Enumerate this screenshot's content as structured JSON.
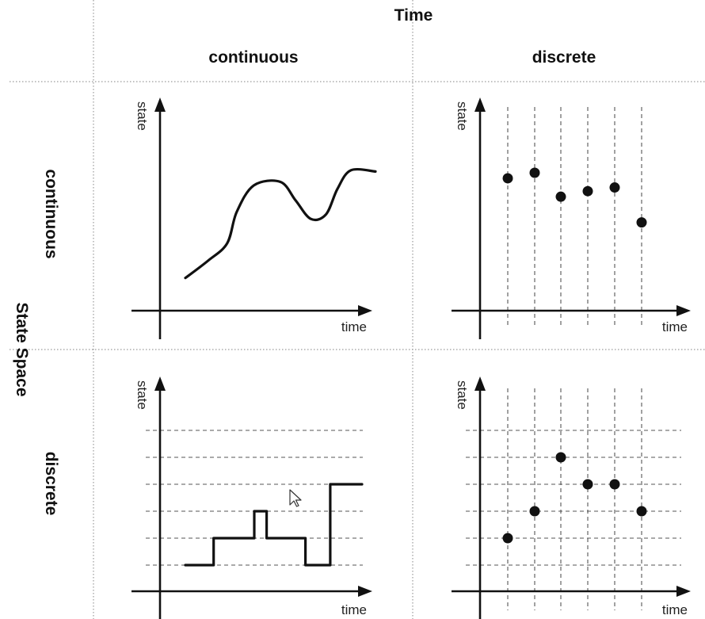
{
  "header": {
    "time_title": "Time",
    "state_space_title": "State Space"
  },
  "columns": [
    {
      "label": "continuous"
    },
    {
      "label": "discrete"
    }
  ],
  "rows": [
    {
      "label": "continuous"
    },
    {
      "label": "discrete"
    }
  ],
  "axes": {
    "y_label": "state",
    "x_label": "time"
  },
  "panels": {
    "continuous_continuous": {
      "description_type": "smooth-curve",
      "points": [
        [
          0,
          0.05
        ],
        [
          0.12,
          0.2
        ],
        [
          0.22,
          0.35
        ],
        [
          0.27,
          0.62
        ],
        [
          0.36,
          0.85
        ],
        [
          0.5,
          0.88
        ],
        [
          0.58,
          0.72
        ],
        [
          0.66,
          0.56
        ],
        [
          0.74,
          0.6
        ],
        [
          0.8,
          0.82
        ],
        [
          0.87,
          0.98
        ],
        [
          1,
          0.97
        ]
      ]
    },
    "continuous_discrete": {
      "sample_count": 6,
      "values": [
        0.72,
        0.75,
        0.62,
        0.65,
        0.67,
        0.48
      ]
    },
    "discrete_continuous": {
      "levels": 6,
      "steps": [
        [
          0,
          1
        ],
        [
          0.16,
          1
        ],
        [
          0.16,
          2
        ],
        [
          0.39,
          2
        ],
        [
          0.39,
          3
        ],
        [
          0.46,
          3
        ],
        [
          0.46,
          2
        ],
        [
          0.68,
          2
        ],
        [
          0.68,
          1
        ],
        [
          0.82,
          1
        ],
        [
          0.82,
          4
        ],
        [
          1,
          4
        ]
      ]
    },
    "discrete_discrete": {
      "levels": 6,
      "sample_count": 6,
      "values": [
        2,
        3,
        5,
        4,
        4,
        3
      ]
    }
  }
}
